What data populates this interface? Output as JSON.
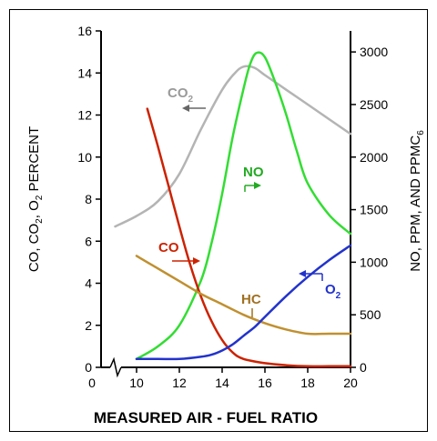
{
  "chart_data": {
    "type": "line",
    "xlabel": "MEASURED AIR - FUEL RATIO",
    "ylabel_left_parts": [
      "CO, CO",
      "2",
      ", O",
      "2",
      " PERCENT"
    ],
    "ylabel_right_parts": [
      "NO, PPM, AND PPMC",
      "6"
    ],
    "xlim": [
      0,
      20
    ],
    "ylim_left": [
      0,
      16
    ],
    "ylim_right": [
      0,
      3200
    ],
    "x_ticks": [
      "0",
      "10",
      "12",
      "14",
      "16",
      "18",
      "20"
    ],
    "y_ticks_left": [
      "0",
      "2",
      "4",
      "6",
      "8",
      "10",
      "12",
      "14",
      "16"
    ],
    "y_ticks_right": [
      "0",
      "500",
      "1000",
      "1500",
      "2000",
      "2500",
      "3000"
    ],
    "series": [
      {
        "name": "CO2",
        "label": "CO",
        "label_sub": "2",
        "axis": "left",
        "color": "#b4b4b4",
        "x": [
          9,
          10,
          11,
          12,
          13,
          14,
          14.6,
          15,
          15.5,
          16,
          17,
          18,
          19,
          20
        ],
        "y": [
          6.7,
          7.2,
          7.9,
          9.2,
          11.3,
          13.2,
          14.0,
          14.3,
          14.25,
          13.9,
          13.2,
          12.5,
          11.8,
          11.1
        ]
      },
      {
        "name": "NO",
        "label": "NO",
        "axis": "right",
        "color": "#33dd33",
        "x": [
          10,
          11,
          12,
          13,
          13.5,
          14,
          14.5,
          15,
          15.3,
          15.6,
          16,
          16.5,
          17,
          17.5,
          18,
          19,
          20
        ],
        "y": [
          80,
          200,
          400,
          820,
          1180,
          1650,
          2200,
          2650,
          2880,
          2990,
          2950,
          2700,
          2400,
          2050,
          1750,
          1450,
          1270
        ]
      },
      {
        "name": "CO",
        "label": "CO",
        "axis": "left",
        "color": "#cc2200",
        "x": [
          10.5,
          11,
          11.5,
          12,
          12.5,
          13,
          13.5,
          14,
          14.5,
          15,
          16,
          17,
          18,
          19,
          20
        ],
        "y": [
          12.3,
          10.5,
          8.6,
          6.7,
          4.9,
          3.4,
          2.2,
          1.3,
          0.7,
          0.4,
          0.2,
          0.1,
          0.05,
          0.05,
          0.05
        ]
      },
      {
        "name": "HC",
        "label": "HC",
        "axis": "left",
        "color": "#c09030",
        "x": [
          10,
          11,
          12,
          13,
          14,
          15,
          16,
          17,
          18,
          19,
          20
        ],
        "y": [
          5.3,
          4.7,
          4.1,
          3.5,
          3.0,
          2.5,
          2.1,
          1.8,
          1.6,
          1.6,
          1.6
        ]
      },
      {
        "name": "O2",
        "label": "O",
        "label_sub": "2",
        "axis": "left",
        "color": "#2233cc",
        "x": [
          10,
          11,
          12,
          13,
          13.5,
          14,
          14.5,
          15,
          15.5,
          16,
          17,
          18,
          19,
          20
        ],
        "y": [
          0.4,
          0.4,
          0.4,
          0.5,
          0.6,
          0.8,
          1.1,
          1.5,
          1.9,
          2.4,
          3.4,
          4.3,
          5.1,
          5.8
        ]
      }
    ]
  }
}
